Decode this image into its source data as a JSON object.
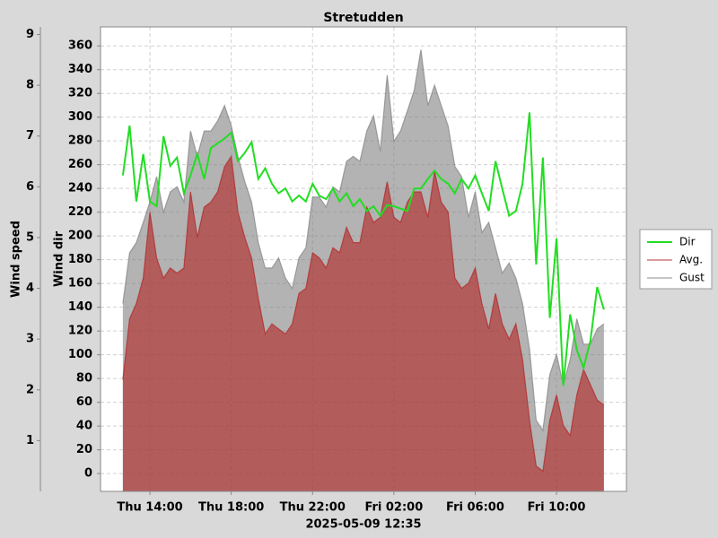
{
  "chart_data": {
    "type": "line",
    "title": "Stretudden",
    "xlabel": "2025-05-09 12:35",
    "ylabel": "Wind dir",
    "y2label": "Wind speed",
    "x": [
      12.67,
      13,
      13.33,
      13.67,
      14,
      14.33,
      14.67,
      15,
      15.33,
      15.67,
      16,
      16.33,
      16.67,
      17,
      17.33,
      17.67,
      18,
      18.33,
      18.67,
      19,
      19.33,
      19.67,
      20,
      20.33,
      20.67,
      21,
      21.33,
      21.67,
      22,
      22.33,
      22.67,
      23,
      23.33,
      23.67,
      24,
      24.33,
      24.67,
      25,
      25.33,
      25.67,
      26,
      26.33,
      26.67,
      27,
      27.33,
      27.67,
      28,
      28.33,
      28.67,
      29,
      29.33,
      29.67,
      30,
      30.33,
      30.67,
      31,
      31.33,
      31.67,
      32,
      32.33,
      32.67,
      33,
      33.33,
      33.67,
      34,
      34.33,
      34.67,
      35,
      35.33,
      35.67,
      36,
      36.33
    ],
    "series": [
      {
        "name": "Dir",
        "color": "#22dd22",
        "values": [
          251,
          293,
          229,
          269,
          229,
          225,
          284,
          259,
          266,
          236,
          251,
          269,
          248,
          274,
          278,
          282,
          287,
          263,
          270,
          279,
          248,
          257,
          244,
          236,
          240,
          229,
          234,
          229,
          244,
          234,
          231,
          240,
          229,
          236,
          225,
          231,
          221,
          225,
          217,
          226,
          225,
          223,
          221,
          240,
          240,
          248,
          255,
          248,
          244,
          236,
          248,
          240,
          251,
          236,
          221,
          263,
          240,
          217,
          221,
          244,
          304,
          176,
          266,
          131,
          198,
          74,
          134,
          104,
          89,
          112,
          157,
          138
        ]
      },
      {
        "name": "Avg.",
        "color": "#b22222",
        "axis": "y2",
        "area": true,
        "values": [
          2.2,
          3.4,
          3.7,
          4.2,
          5.5,
          4.6,
          4.2,
          4.4,
          4.3,
          4.4,
          5.9,
          5.0,
          5.6,
          5.7,
          5.9,
          6.4,
          6.6,
          5.5,
          5.0,
          4.6,
          3.8,
          3.1,
          3.3,
          3.2,
          3.1,
          3.3,
          3.9,
          4.0,
          4.7,
          4.6,
          4.4,
          4.8,
          4.7,
          5.2,
          4.9,
          4.9,
          5.6,
          5.3,
          5.4,
          6.1,
          5.4,
          5.3,
          5.7,
          5.9,
          5.9,
          5.4,
          6.3,
          5.7,
          5.5,
          4.2,
          4.0,
          4.1,
          4.4,
          3.7,
          3.2,
          3.9,
          3.3,
          3.0,
          3.3,
          2.6,
          1.4,
          0.5,
          0.4,
          1.4,
          1.9,
          1.3,
          1.1,
          1.9,
          2.4,
          2.1,
          1.8,
          1.7
        ]
      },
      {
        "name": "Gust",
        "color": "#808080",
        "axis": "y2",
        "area": true,
        "values": [
          3.7,
          4.7,
          4.9,
          5.3,
          5.7,
          6.2,
          5.5,
          5.9,
          6.0,
          5.7,
          7.1,
          6.6,
          7.1,
          7.1,
          7.3,
          7.6,
          7.2,
          6.6,
          6.1,
          5.7,
          4.9,
          4.4,
          4.4,
          4.6,
          4.2,
          4.0,
          4.6,
          4.8,
          5.8,
          5.8,
          5.6,
          6.0,
          5.9,
          6.5,
          6.6,
          6.5,
          7.1,
          7.4,
          6.7,
          8.2,
          6.9,
          7.1,
          7.5,
          7.9,
          8.7,
          7.6,
          8.0,
          7.6,
          7.2,
          6.4,
          6.2,
          5.4,
          5.9,
          5.1,
          5.3,
          4.8,
          4.3,
          4.5,
          4.2,
          3.7,
          2.8,
          1.4,
          1.2,
          2.3,
          2.7,
          2.1,
          2.6,
          3.4,
          2.9,
          2.9,
          3.2,
          3.3
        ]
      }
    ],
    "xlim": [
      11.57,
      37.44
    ],
    "xticks": [
      {
        "value": 14,
        "label": "Thu 14:00"
      },
      {
        "value": 18,
        "label": "Thu 18:00"
      },
      {
        "value": 22,
        "label": "Thu 22:00"
      },
      {
        "value": 26,
        "label": "Fri 02:00"
      },
      {
        "value": 30,
        "label": "Fri 06:00"
      },
      {
        "value": 34,
        "label": "Fri 10:00"
      }
    ],
    "ylim": [
      -15,
      376
    ],
    "yticks": [
      0,
      20,
      40,
      60,
      80,
      100,
      120,
      140,
      160,
      180,
      200,
      220,
      240,
      260,
      280,
      300,
      320,
      340,
      360
    ],
    "y2lim": [
      0,
      9.15
    ],
    "y2ticks": [
      1,
      2,
      3,
      4,
      5,
      6,
      7,
      8,
      9
    ],
    "grid": true,
    "legend": "right"
  }
}
